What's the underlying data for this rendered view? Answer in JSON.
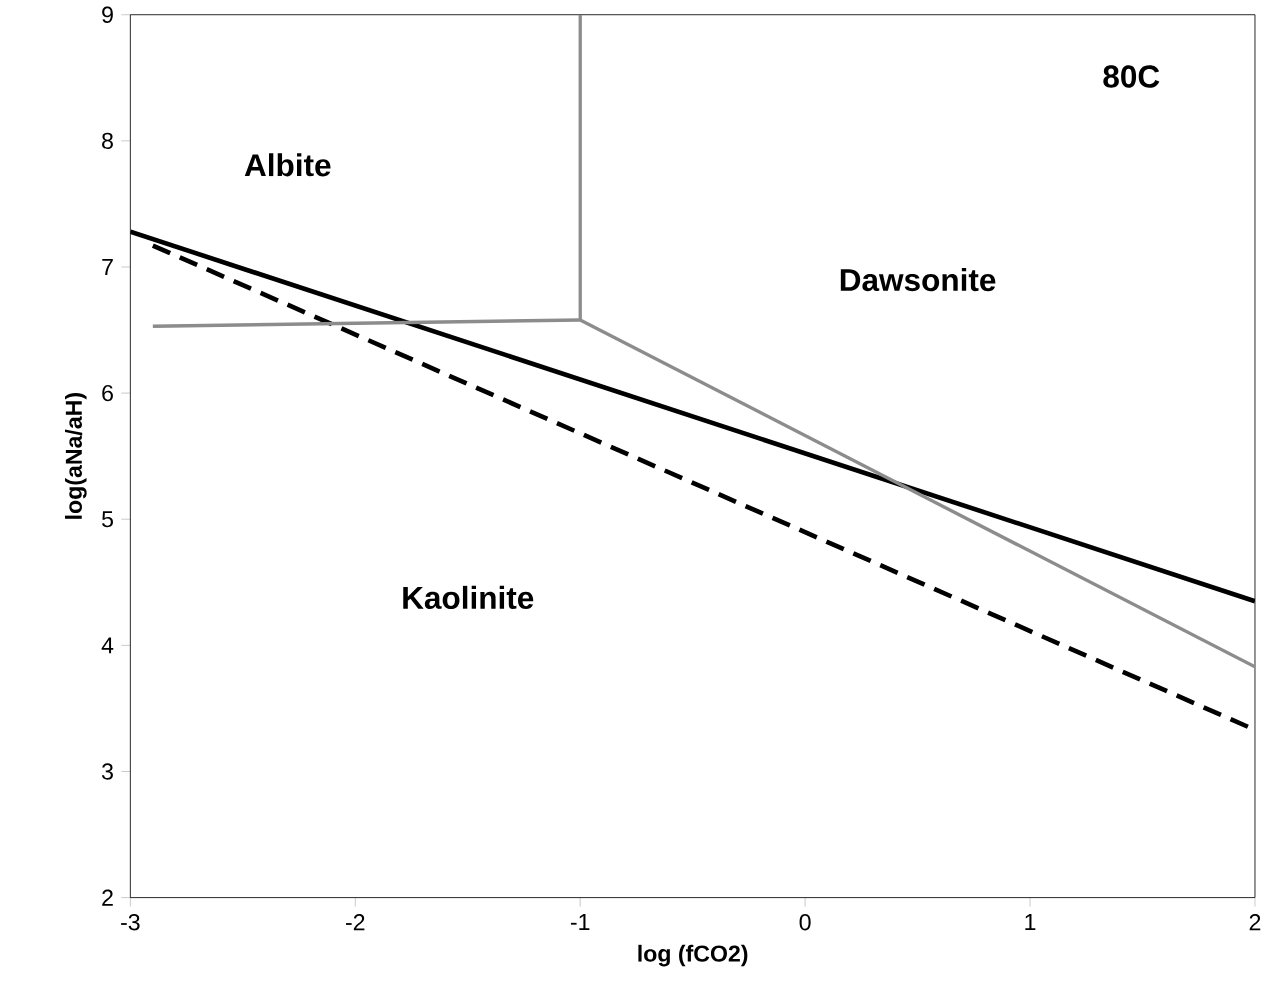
{
  "chart_data": {
    "type": "line",
    "xlabel": "log (fCO2)",
    "ylabel": "log(aNa/aH)",
    "xlim": [
      -3,
      2
    ],
    "ylim": [
      2,
      9
    ],
    "xticks": [
      -3,
      -2,
      -1,
      0,
      1,
      2
    ],
    "yticks": [
      2,
      3,
      4,
      5,
      6,
      7,
      8,
      9
    ],
    "grid": false,
    "marker": "none",
    "series": [
      {
        "x": [
          -3,
          2
        ],
        "values": [
          7.28,
          4.35
        ],
        "color": "#000000",
        "line_style": "solid"
      },
      {
        "x": [
          -2.9,
          2
        ],
        "values": [
          7.17,
          3.33
        ],
        "color": "#000000",
        "line_style": "dashed"
      },
      {
        "x": [
          -2.9,
          -1
        ],
        "values": [
          6.53,
          6.58
        ],
        "color": "#8c8c8c",
        "line_style": "solid"
      },
      {
        "x": [
          -1,
          -1
        ],
        "values": [
          6.58,
          9
        ],
        "color": "#8c8c8c",
        "line_style": "solid"
      },
      {
        "x": [
          -1,
          2
        ],
        "values": [
          6.58,
          3.83
        ],
        "color": "#8c8c8c",
        "line_style": "solid"
      }
    ],
    "annotations": [
      "Albite",
      "Dawsonite",
      "Kaolinite",
      "80C"
    ]
  }
}
